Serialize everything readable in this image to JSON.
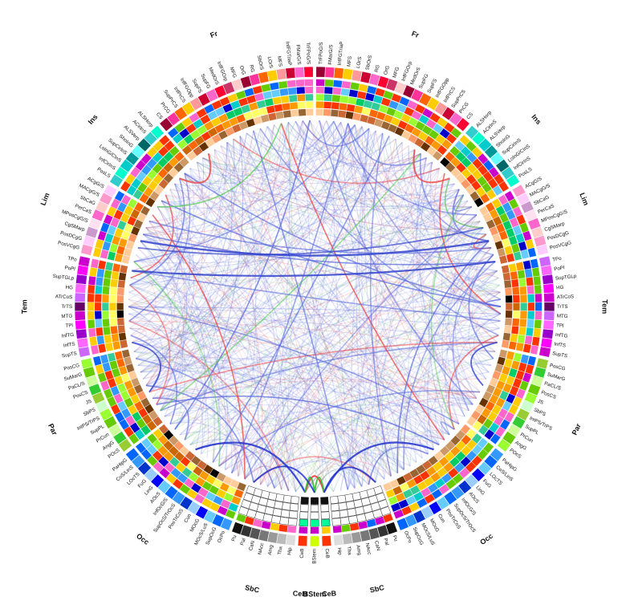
{
  "lobe_colors": {
    "Fr": [
      "#ff0033",
      "#ff66cc",
      "#cc0033",
      "#ff9999",
      "#ffcc00",
      "#ff6600",
      "#ff3399",
      "#990033",
      "#ffcccc",
      "#cc3366"
    ],
    "Ins": [
      "#00ffcc",
      "#33cccc",
      "#006666",
      "#66ffff",
      "#009999",
      "#00cccc"
    ],
    "Lim": [
      "#ffccff",
      "#ff99cc",
      "#ffcccc",
      "#ff66cc",
      "#ffe0f0",
      "#cc99cc"
    ],
    "Tem": [
      "#cc00cc",
      "#ff00ff",
      "#9900cc",
      "#ff66ff",
      "#cc66ff",
      "#660066"
    ],
    "Par": [
      "#99ff33",
      "#66cc00",
      "#ccff99",
      "#33cc33",
      "#99cc33",
      "#ccffcc"
    ],
    "Occ": [
      "#0066ff",
      "#3399ff",
      "#0033cc",
      "#99ccff",
      "#0000ff",
      "#66ccff"
    ],
    "SbC": [
      "#222222",
      "#555555",
      "#888888",
      "#aaaaaa",
      "#cccccc",
      "#eeeeee"
    ],
    "CeB": [
      "#ff3300"
    ],
    "BStem": [
      "#ccff00"
    ]
  },
  "track_palette": [
    "#ff3300",
    "#ff9900",
    "#ffcc00",
    "#66cc00",
    "#00cc66",
    "#3399ff",
    "#0000cc",
    "#9900cc",
    "#ff66cc",
    "#cc6633",
    "#996633",
    "#000000"
  ],
  "lobes": [
    {
      "name": "Fr",
      "side": "left",
      "regions": [
        "TrFPoG/S",
        "FMarG/S",
        "InfFGTriaP",
        "MFS",
        "LOrS",
        "SbOrS",
        "RG",
        "OrG",
        "MFG",
        "InfFGOrp",
        "MedOrS",
        "SupFG",
        "SupFS",
        "InfFGOpp",
        "InfPrCS",
        "SupPrCS",
        "PrCG",
        "CS"
      ]
    },
    {
      "name": "Ins",
      "side": "left",
      "regions": [
        "ALSHorp",
        "ACirInS",
        "ALSVerp",
        "ShoInG",
        "SupCirInS",
        "LoInG/CInS",
        "InfCirInS",
        "PosLS"
      ]
    },
    {
      "name": "Lim",
      "side": "left",
      "regions": [
        "ACgG/S",
        "MACgG/S",
        "SbCaG",
        "PerCaS",
        "MPosCgG/S",
        "CgSMarp",
        "PosDCgG",
        "PosVCgG"
      ]
    },
    {
      "name": "Tem",
      "side": "left",
      "regions": [
        "TPo",
        "PoPl",
        "SupTGLp",
        "HG",
        "ATrCoS",
        "TrTS",
        "MTG",
        "TPl",
        "InfTG",
        "InfTS",
        "SupTS"
      ]
    },
    {
      "name": "Par",
      "side": "left",
      "regions": [
        "PosCG",
        "SuMarG",
        "PaCL/S",
        "PosCS",
        "JS",
        "SbPS",
        "IntPS/TrPS",
        "SupPL",
        "PrCun",
        "AngG",
        "POcS"
      ]
    },
    {
      "name": "Occ",
      "side": "left",
      "regions": [
        "PaHipG",
        "CoS/LinS",
        "LOcTS",
        "FuG",
        "LinG",
        "AOcS",
        "InfOcG/S",
        "SupOcS/TrOcS",
        "PosTrCoS",
        "Cun",
        "MOcG",
        "MOcS/LuS",
        "SupOcG",
        "OcPo"
      ]
    },
    {
      "name": "SbC",
      "side": "left",
      "regions": [
        "Pu",
        "Pal",
        "CaN",
        "NAcc",
        "Amg",
        "Tha",
        "Hip"
      ]
    },
    {
      "name": "CeB",
      "side": "left",
      "regions": [
        "CeB"
      ]
    },
    {
      "name": "BStem",
      "side": "mid",
      "regions": [
        "BStem"
      ]
    },
    {
      "name": "CeB",
      "side": "right",
      "regions": [
        "CeB"
      ]
    },
    {
      "name": "SbC",
      "side": "right",
      "regions": [
        "Hip",
        "Tha",
        "Amg",
        "NAcc",
        "CaN",
        "Pal",
        "Pu"
      ]
    },
    {
      "name": "Occ",
      "side": "right",
      "regions": [
        "OcPo",
        "SupOcG",
        "MOcS/LuS",
        "MOcG",
        "Cun",
        "PosTrCoS",
        "SupOcS/TrOcS",
        "InfOcG/S",
        "AOcS",
        "LinG",
        "FuG",
        "LOcTS",
        "CoS/LinS",
        "PaHipG"
      ]
    },
    {
      "name": "Par",
      "side": "right",
      "regions": [
        "POcS",
        "AngG",
        "PrCun",
        "SupPL",
        "IntPS/TrPS",
        "SbPS",
        "JS",
        "PosCS",
        "PaCL/S",
        "SuMarG",
        "PosCG"
      ]
    },
    {
      "name": "Tem",
      "side": "right",
      "regions": [
        "SupTS",
        "InfTS",
        "InfTG",
        "TPl",
        "MTG",
        "TrTS",
        "ATrCoS",
        "HG",
        "SupTGLp",
        "PoPl",
        "TPo"
      ]
    },
    {
      "name": "Lim",
      "side": "right",
      "regions": [
        "PosVCgG",
        "PosDCgG",
        "CgSMarp",
        "MPosCgG/S",
        "PerCaS",
        "SbCaG",
        "MACgG/S",
        "ACgG/S"
      ]
    },
    {
      "name": "Ins",
      "side": "right",
      "regions": [
        "PosLS",
        "InfCirInS",
        "LoInG/CInS",
        "SupCirInS",
        "ShoInG",
        "ALSVerp",
        "ACirInS",
        "ALSHorp"
      ]
    },
    {
      "name": "Fr",
      "side": "right",
      "regions": [
        "CS",
        "PrCG",
        "SupPrCS",
        "InfPrCS",
        "InfFGOpp",
        "SupFS",
        "SupFG",
        "MedOrS",
        "InfFGOrp",
        "MFG",
        "OrG",
        "RG",
        "SbOrS",
        "LOrS",
        "MFS",
        "InfFGTriaP",
        "FMarG/S",
        "TrFPoG/S"
      ]
    }
  ],
  "link_colors": {
    "blue": "#5566dd",
    "red": "#ee4444",
    "green": "#55cc55"
  }
}
